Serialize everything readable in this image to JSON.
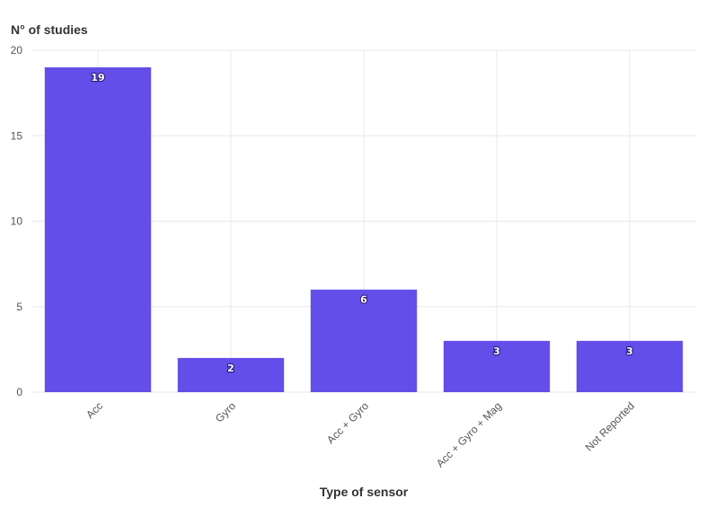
{
  "chart_data": {
    "type": "bar",
    "ylabel": "N° of studies",
    "xlabel": "Type of sensor",
    "categories": [
      "Acc",
      "Gyro",
      "Acc + Gyro",
      "Acc + Gyro + Mag",
      "Not Reported"
    ],
    "values": [
      19,
      2,
      6,
      3,
      3
    ],
    "data_labels": [
      "19",
      "2",
      "6",
      "3",
      "3"
    ],
    "ylim": [
      0,
      20
    ],
    "yticks": [
      0,
      5,
      10,
      15,
      20
    ],
    "ytick_labels": [
      "0",
      "5",
      "10",
      "15",
      "20"
    ],
    "grid": true,
    "bar_color": "#5b45e8"
  }
}
